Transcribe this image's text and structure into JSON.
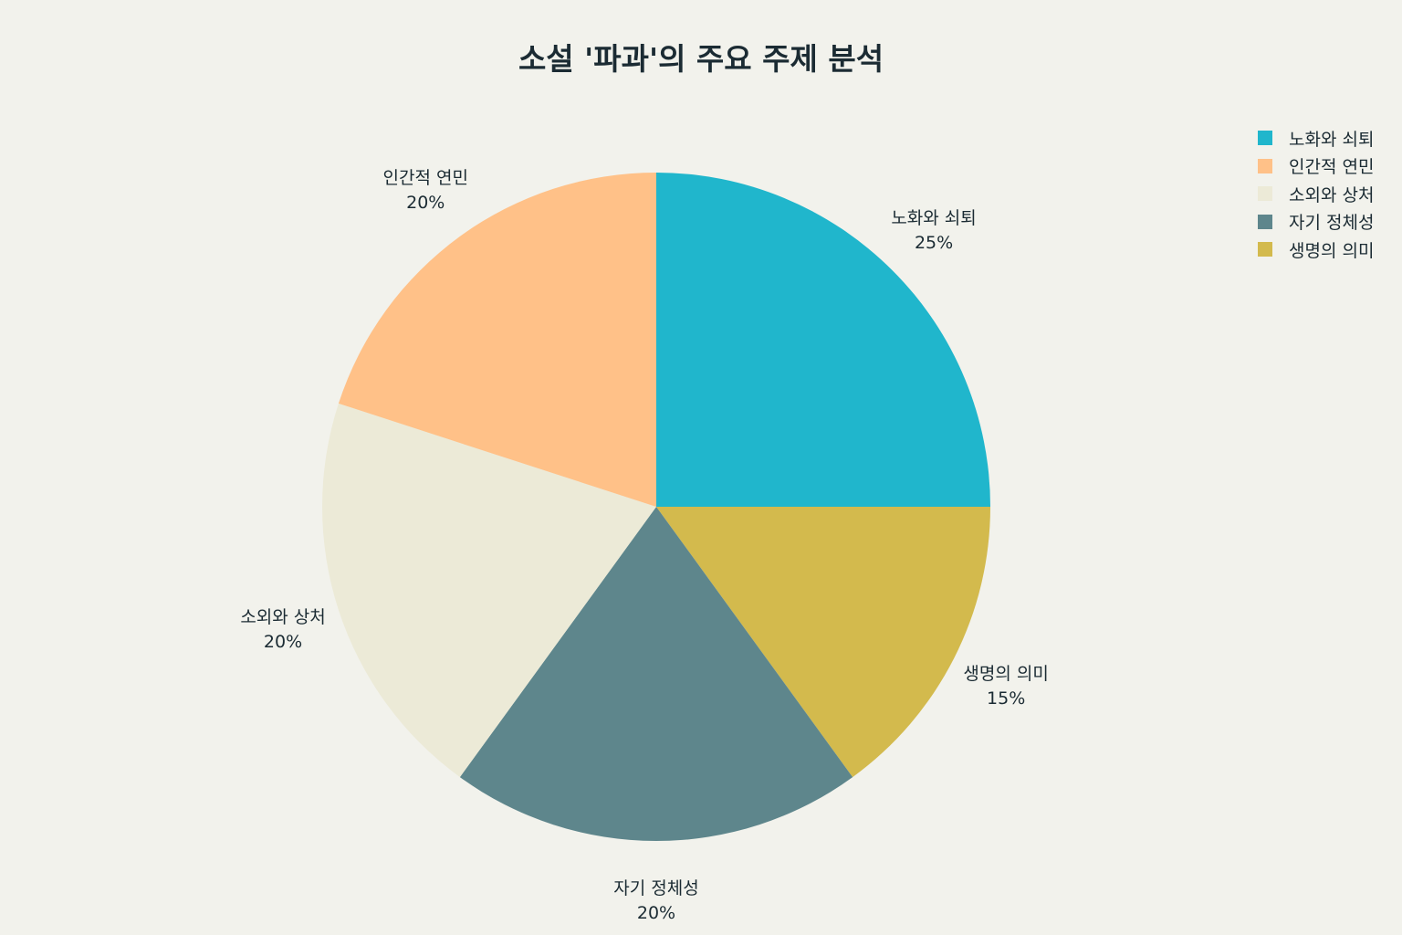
{
  "chart_data": {
    "type": "pie",
    "title": "소설 '파과'의 주요 주제 분석",
    "slices": [
      {
        "label": "노화와 쇠퇴",
        "value": 25,
        "display": "25%",
        "color": "#20b6cc"
      },
      {
        "label": "생명의 의미",
        "value": 15,
        "display": "15%",
        "color": "#d3ba4d"
      },
      {
        "label": "자기 정체성",
        "value": 20,
        "display": "20%",
        "color": "#5e868c"
      },
      {
        "label": "소외와 상처",
        "value": 20,
        "display": "20%",
        "color": "#ecead7"
      },
      {
        "label": "인간적 연민",
        "value": 20,
        "display": "20%",
        "color": "#ffc188"
      }
    ],
    "legend": {
      "position": "top-right",
      "items": [
        {
          "label": "노화와 쇠퇴",
          "color": "#20b6cc"
        },
        {
          "label": "인간적 연민",
          "color": "#ffc188"
        },
        {
          "label": "소외와 상처",
          "color": "#ecead7"
        },
        {
          "label": "자기 정체성",
          "color": "#5e868c"
        },
        {
          "label": "생명의 의미",
          "color": "#d3ba4d"
        }
      ]
    },
    "start_angle": "12 o'clock",
    "direction": "clockwise"
  }
}
